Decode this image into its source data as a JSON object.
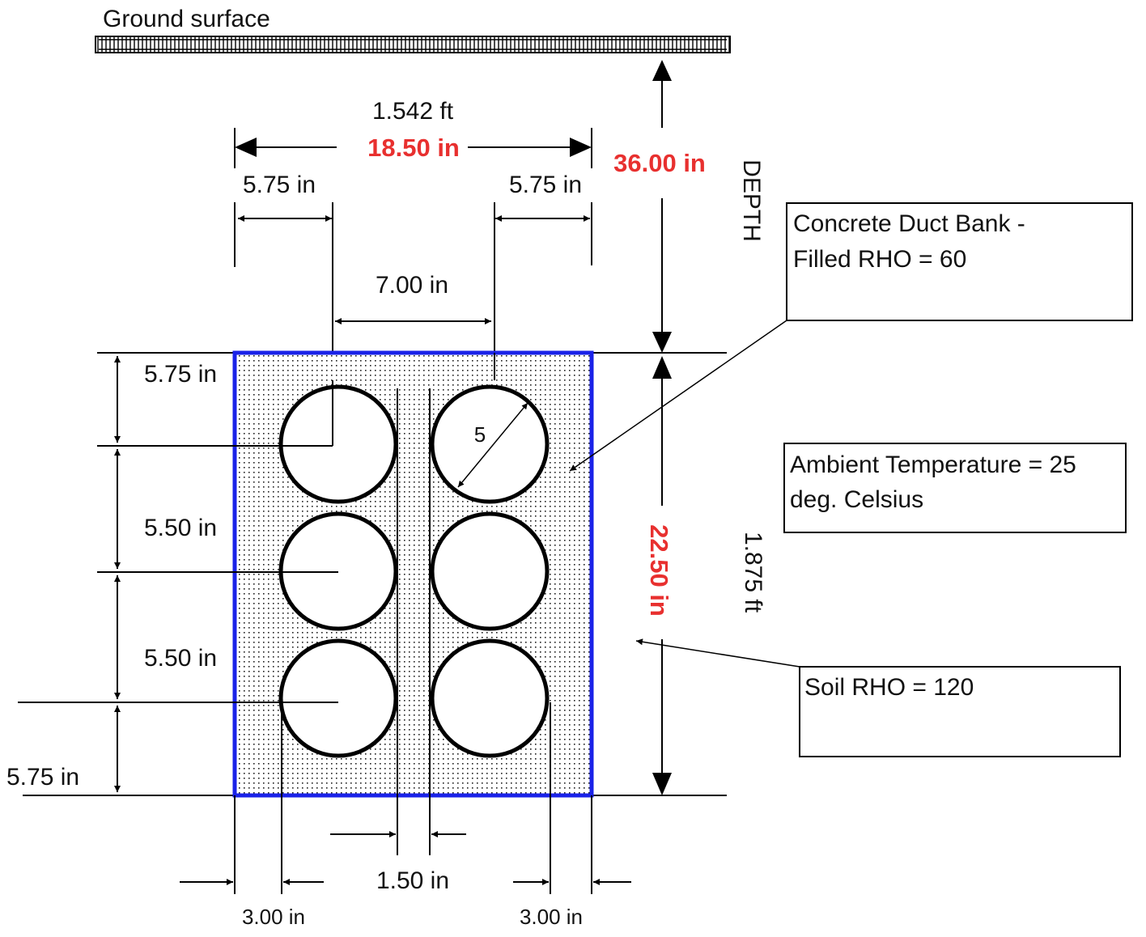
{
  "ground_label": "Ground surface",
  "width": {
    "ft": "1.542 ft",
    "inches": "18.50 in"
  },
  "depth": {
    "value": "36.00 in",
    "label": "DEPTH"
  },
  "height": {
    "inches": "22.50 in",
    "ft": "1.875 ft"
  },
  "top_margins": {
    "left": "5.75 in",
    "right": "5.75 in"
  },
  "center_spacing": "7.00 in",
  "vertical_dims": [
    "5.75 in",
    "5.50 in",
    "5.50 in",
    "5.75 in"
  ],
  "bottom_dims": {
    "left": "3.00 in",
    "middle": "1.50 in",
    "right": "3.00 in"
  },
  "duct_diameter": "5",
  "notes": {
    "concrete": [
      "Concrete Duct Bank -",
      "Filled RHO = 60"
    ],
    "ambient": [
      "Ambient Temperature = 25",
      "deg. Celsius"
    ],
    "soil": [
      "Soil RHO = 120"
    ]
  },
  "colors": {
    "accent": "#e8302f",
    "bank_border": "#1a22e8"
  }
}
